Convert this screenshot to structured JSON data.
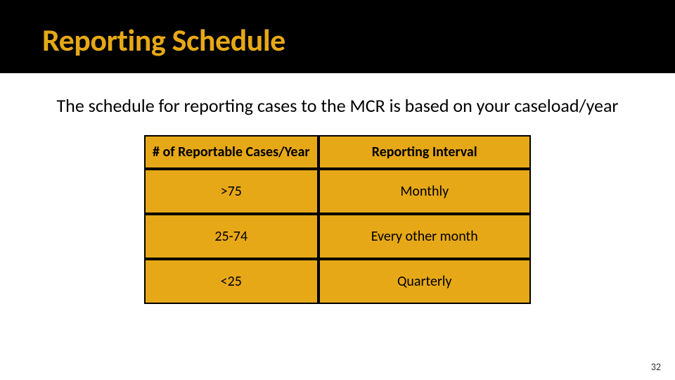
{
  "header": {
    "title": "Reporting Schedule",
    "title_color": "#e6a817",
    "band_color": "#000000"
  },
  "subtitle": "The schedule for reporting cases to the MCR is based on your caseload/year",
  "table": {
    "type": "table",
    "cell_background": "#e6a817",
    "border_color": "#000000",
    "columns": [
      {
        "label": "# of Reportable Cases/Year",
        "width_pct": 45
      },
      {
        "label": "Reporting Interval",
        "width_pct": 55
      }
    ],
    "rows": [
      [
        ">75",
        "Monthly"
      ],
      [
        "25-74",
        "Every other month"
      ],
      [
        "<25",
        "Quarterly"
      ]
    ]
  },
  "page_number": "32"
}
